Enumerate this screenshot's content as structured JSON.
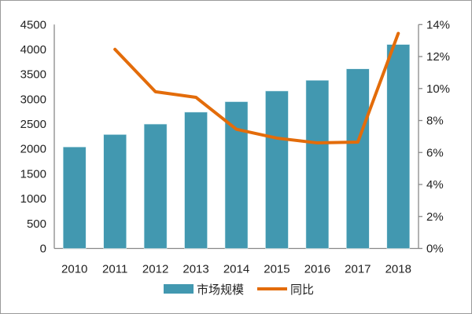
{
  "chart_data": {
    "type": "bar+line",
    "categories": [
      "2010",
      "2011",
      "2012",
      "2013",
      "2014",
      "2015",
      "2016",
      "2017",
      "2018"
    ],
    "series": [
      {
        "name": "市场规模",
        "type": "bar",
        "axis": "left",
        "color": "#4298b0",
        "values": [
          2040,
          2290,
          2500,
          2740,
          2950,
          3165,
          3380,
          3610,
          4100
        ]
      },
      {
        "name": "同比",
        "type": "line",
        "axis": "right",
        "color": "#e36c0a",
        "values": [
          null,
          12.45,
          9.8,
          9.45,
          7.45,
          6.9,
          6.6,
          6.65,
          13.45
        ]
      }
    ],
    "ylim_left": [
      0,
      4500
    ],
    "yticks_left": [
      "0",
      "500",
      "1000",
      "1500",
      "2000",
      "2500",
      "3000",
      "3500",
      "4000",
      "4500"
    ],
    "ylim_right": [
      0,
      14
    ],
    "yticks_right": [
      "0%",
      "2%",
      "4%",
      "6%",
      "8%",
      "10%",
      "12%",
      "14%"
    ],
    "grid": false,
    "legend": "bottom"
  }
}
